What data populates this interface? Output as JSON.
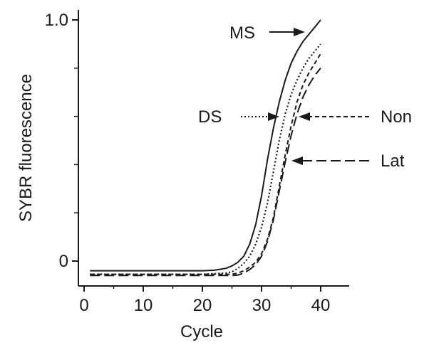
{
  "chart_data": {
    "type": "line",
    "title": "",
    "xlabel": "Cycle",
    "ylabel": "SYBR fluorescence",
    "xlim": [
      0,
      45
    ],
    "ylim": [
      -0.05,
      1.0
    ],
    "xticks": [
      0,
      10,
      20,
      30,
      40
    ],
    "xtick_labels": [
      "0",
      "10",
      "20",
      "30",
      "40"
    ],
    "yticks": [
      0,
      1.0
    ],
    "ytick_labels": [
      "0",
      "1.0"
    ],
    "grid": false,
    "series": [
      {
        "name": "MS",
        "style": "solid",
        "x": [
          1,
          5,
          10,
          15,
          20,
          22,
          24,
          25,
          26,
          27,
          28,
          29,
          30,
          31,
          32,
          33,
          34,
          35,
          36,
          37,
          38,
          39,
          40
        ],
        "y": [
          -0.04,
          -0.04,
          -0.04,
          -0.04,
          -0.04,
          -0.038,
          -0.03,
          -0.02,
          -0.005,
          0.02,
          0.07,
          0.15,
          0.27,
          0.42,
          0.55,
          0.66,
          0.75,
          0.82,
          0.87,
          0.91,
          0.94,
          0.97,
          1.0
        ]
      },
      {
        "name": "DS",
        "style": "dotted",
        "x": [
          1,
          5,
          10,
          15,
          20,
          24,
          25,
          26,
          27,
          28,
          29,
          30,
          31,
          32,
          33,
          34,
          35,
          36,
          37,
          38,
          39,
          40
        ],
        "y": [
          -0.055,
          -0.055,
          -0.055,
          -0.055,
          -0.055,
          -0.05,
          -0.045,
          -0.03,
          -0.01,
          0.02,
          0.07,
          0.14,
          0.24,
          0.37,
          0.5,
          0.61,
          0.69,
          0.75,
          0.8,
          0.84,
          0.87,
          0.9
        ]
      },
      {
        "name": "Non",
        "style": "short-dash",
        "x": [
          1,
          5,
          10,
          15,
          20,
          24,
          25,
          26,
          27,
          28,
          29,
          30,
          31,
          32,
          33,
          34,
          35,
          36,
          37,
          38,
          39,
          40
        ],
        "y": [
          -0.055,
          -0.055,
          -0.055,
          -0.055,
          -0.055,
          -0.055,
          -0.055,
          -0.05,
          -0.04,
          -0.025,
          -0.005,
          0.03,
          0.09,
          0.18,
          0.31,
          0.44,
          0.56,
          0.66,
          0.73,
          0.78,
          0.82,
          0.86
        ]
      },
      {
        "name": "Lat",
        "style": "long-dash",
        "x": [
          1,
          5,
          10,
          15,
          20,
          24,
          25,
          26,
          27,
          28,
          29,
          30,
          31,
          32,
          33,
          34,
          35,
          36,
          37,
          38,
          39,
          40
        ],
        "y": [
          -0.06,
          -0.06,
          -0.06,
          -0.06,
          -0.06,
          -0.06,
          -0.06,
          -0.058,
          -0.05,
          -0.035,
          -0.015,
          0.02,
          0.08,
          0.17,
          0.29,
          0.41,
          0.52,
          0.61,
          0.68,
          0.73,
          0.77,
          0.8
        ]
      }
    ],
    "annotations": [
      {
        "text": "MS",
        "series": "MS",
        "arrow_style": "solid",
        "side": "left"
      },
      {
        "text": "DS",
        "series": "DS",
        "arrow_style": "dotted",
        "side": "left"
      },
      {
        "text": "Non",
        "series": "Non",
        "arrow_style": "short-dash",
        "side": "right"
      },
      {
        "text": "Lat",
        "series": "Lat",
        "arrow_style": "long-dash",
        "side": "right"
      }
    ],
    "colors": {
      "line": "#1a1a1a",
      "background": "#ffffff"
    }
  }
}
